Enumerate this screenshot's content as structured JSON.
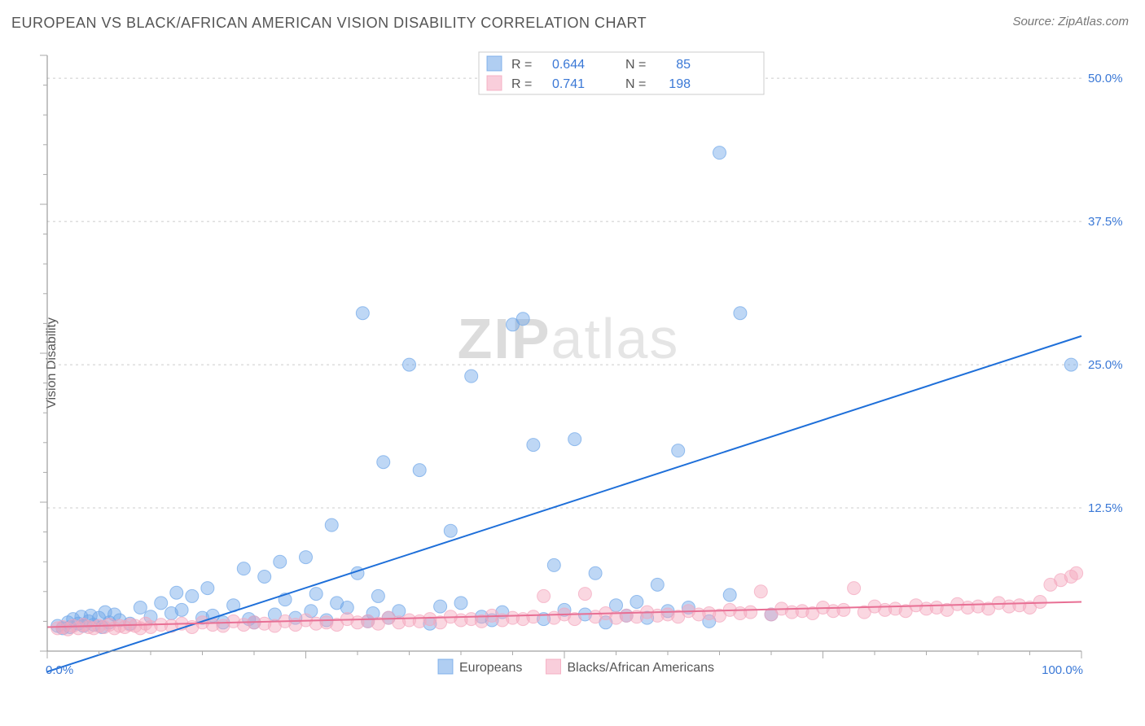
{
  "title": "EUROPEAN VS BLACK/AFRICAN AMERICAN VISION DISABILITY CORRELATION CHART",
  "source": "Source: ZipAtlas.com",
  "ylabel": "Vision Disability",
  "watermark_bold": "ZIP",
  "watermark_rest": "atlas",
  "chart": {
    "type": "scatter",
    "xlim": [
      0,
      100
    ],
    "ylim": [
      0,
      52
    ],
    "xticks": [
      0,
      100
    ],
    "xtick_labels": [
      "0.0%",
      "100.0%"
    ],
    "yticks": [
      12.5,
      25.0,
      37.5,
      50.0
    ],
    "ytick_labels": [
      "12.5%",
      "25.0%",
      "37.5%",
      "50.0%"
    ],
    "background_color": "#ffffff",
    "grid_color": "#cccccc",
    "axis_color": "#888888",
    "marker_radius": 8,
    "marker_opacity": 0.45,
    "marker_stroke_opacity": 0.7,
    "line_width": 2,
    "series": [
      {
        "name": "Europeans",
        "color": "#6fa6e8",
        "line_color": "#1e6fd9",
        "R": "0.644",
        "N": "85",
        "trend": {
          "x1": 0,
          "y1": -1.8,
          "x2": 100,
          "y2": 27.5
        },
        "points": [
          [
            1,
            2.2
          ],
          [
            1.5,
            2.0
          ],
          [
            2,
            2.5
          ],
          [
            2.2,
            2.1
          ],
          [
            2.5,
            2.8
          ],
          [
            3,
            2.4
          ],
          [
            3.3,
            3.0
          ],
          [
            3.5,
            2.2
          ],
          [
            4,
            2.6
          ],
          [
            4.2,
            3.1
          ],
          [
            4.5,
            2.3
          ],
          [
            5,
            2.9
          ],
          [
            5.3,
            2.1
          ],
          [
            5.6,
            3.4
          ],
          [
            6,
            2.5
          ],
          [
            6.5,
            3.2
          ],
          [
            7,
            2.7
          ],
          [
            8,
            2.4
          ],
          [
            9,
            3.8
          ],
          [
            10,
            3.0
          ],
          [
            11,
            4.2
          ],
          [
            12,
            3.3
          ],
          [
            12.5,
            5.1
          ],
          [
            13,
            3.6
          ],
          [
            14,
            4.8
          ],
          [
            15,
            2.9
          ],
          [
            15.5,
            5.5
          ],
          [
            16,
            3.1
          ],
          [
            17,
            2.5
          ],
          [
            18,
            4.0
          ],
          [
            19,
            7.2
          ],
          [
            19.5,
            2.8
          ],
          [
            20,
            2.5
          ],
          [
            21,
            6.5
          ],
          [
            22,
            3.2
          ],
          [
            22.5,
            7.8
          ],
          [
            23,
            4.5
          ],
          [
            24,
            2.9
          ],
          [
            25,
            8.2
          ],
          [
            25.5,
            3.5
          ],
          [
            26,
            5.0
          ],
          [
            27,
            2.7
          ],
          [
            27.5,
            11.0
          ],
          [
            28,
            4.2
          ],
          [
            29,
            3.8
          ],
          [
            30,
            6.8
          ],
          [
            30.5,
            29.5
          ],
          [
            31,
            2.6
          ],
          [
            31.5,
            3.3
          ],
          [
            32,
            4.8
          ],
          [
            32.5,
            16.5
          ],
          [
            33,
            2.9
          ],
          [
            34,
            3.5
          ],
          [
            35,
            25.0
          ],
          [
            36,
            15.8
          ],
          [
            37,
            2.4
          ],
          [
            38,
            3.9
          ],
          [
            39,
            10.5
          ],
          [
            40,
            4.2
          ],
          [
            41,
            24.0
          ],
          [
            42,
            3.0
          ],
          [
            43,
            2.7
          ],
          [
            44,
            3.4
          ],
          [
            45,
            28.5
          ],
          [
            46,
            29.0
          ],
          [
            47,
            18.0
          ],
          [
            48,
            2.8
          ],
          [
            49,
            7.5
          ],
          [
            50,
            3.6
          ],
          [
            51,
            18.5
          ],
          [
            52,
            3.2
          ],
          [
            53,
            6.8
          ],
          [
            54,
            2.5
          ],
          [
            55,
            4.0
          ],
          [
            56,
            3.1
          ],
          [
            57,
            4.3
          ],
          [
            58,
            2.9
          ],
          [
            59,
            5.8
          ],
          [
            60,
            3.5
          ],
          [
            61,
            17.5
          ],
          [
            62,
            3.8
          ],
          [
            64,
            2.6
          ],
          [
            65,
            43.5
          ],
          [
            66,
            4.9
          ],
          [
            67,
            29.5
          ],
          [
            70,
            3.2
          ],
          [
            99,
            25.0
          ]
        ]
      },
      {
        "name": "Blacks/African Americans",
        "color": "#f4a6bd",
        "line_color": "#e86f94",
        "R": "0.741",
        "N": "198",
        "trend": {
          "x1": 0,
          "y1": 2.1,
          "x2": 100,
          "y2": 4.3
        },
        "points": [
          [
            1,
            2.0
          ],
          [
            1.5,
            2.1
          ],
          [
            2,
            1.9
          ],
          [
            2.5,
            2.2
          ],
          [
            3,
            2.0
          ],
          [
            3.5,
            2.3
          ],
          [
            4,
            2.1
          ],
          [
            4.5,
            2.0
          ],
          [
            5,
            2.2
          ],
          [
            5.5,
            2.1
          ],
          [
            6,
            2.3
          ],
          [
            6.5,
            2.0
          ],
          [
            7,
            2.2
          ],
          [
            7.5,
            2.1
          ],
          [
            8,
            2.3
          ],
          [
            8.5,
            2.2
          ],
          [
            9,
            2.0
          ],
          [
            9.5,
            2.4
          ],
          [
            10,
            2.1
          ],
          [
            11,
            2.3
          ],
          [
            12,
            2.2
          ],
          [
            13,
            2.4
          ],
          [
            14,
            2.1
          ],
          [
            15,
            2.5
          ],
          [
            16,
            2.3
          ],
          [
            17,
            2.2
          ],
          [
            18,
            2.6
          ],
          [
            19,
            2.3
          ],
          [
            20,
            2.5
          ],
          [
            21,
            2.4
          ],
          [
            22,
            2.2
          ],
          [
            23,
            2.6
          ],
          [
            24,
            2.3
          ],
          [
            25,
            2.7
          ],
          [
            26,
            2.4
          ],
          [
            27,
            2.5
          ],
          [
            28,
            2.3
          ],
          [
            29,
            2.8
          ],
          [
            30,
            2.5
          ],
          [
            31,
            2.6
          ],
          [
            32,
            2.4
          ],
          [
            33,
            2.9
          ],
          [
            34,
            2.5
          ],
          [
            35,
            2.7
          ],
          [
            36,
            2.6
          ],
          [
            37,
            2.8
          ],
          [
            38,
            2.5
          ],
          [
            39,
            3.0
          ],
          [
            40,
            2.7
          ],
          [
            41,
            2.8
          ],
          [
            42,
            2.6
          ],
          [
            43,
            3.1
          ],
          [
            44,
            2.7
          ],
          [
            45,
            2.9
          ],
          [
            46,
            2.8
          ],
          [
            47,
            3.0
          ],
          [
            48,
            4.8
          ],
          [
            49,
            2.9
          ],
          [
            50,
            3.2
          ],
          [
            51,
            2.8
          ],
          [
            52,
            5.0
          ],
          [
            53,
            3.0
          ],
          [
            54,
            3.3
          ],
          [
            55,
            2.9
          ],
          [
            56,
            3.1
          ],
          [
            57,
            3.0
          ],
          [
            58,
            3.4
          ],
          [
            59,
            3.1
          ],
          [
            60,
            3.2
          ],
          [
            61,
            3.0
          ],
          [
            62,
            3.5
          ],
          [
            63,
            3.2
          ],
          [
            64,
            3.3
          ],
          [
            65,
            3.1
          ],
          [
            66,
            3.6
          ],
          [
            67,
            3.3
          ],
          [
            68,
            3.4
          ],
          [
            69,
            5.2
          ],
          [
            70,
            3.2
          ],
          [
            71,
            3.7
          ],
          [
            72,
            3.4
          ],
          [
            73,
            3.5
          ],
          [
            74,
            3.3
          ],
          [
            75,
            3.8
          ],
          [
            76,
            3.5
          ],
          [
            77,
            3.6
          ],
          [
            78,
            5.5
          ],
          [
            79,
            3.4
          ],
          [
            80,
            3.9
          ],
          [
            81,
            3.6
          ],
          [
            82,
            3.7
          ],
          [
            83,
            3.5
          ],
          [
            84,
            4.0
          ],
          [
            85,
            3.7
          ],
          [
            86,
            3.8
          ],
          [
            87,
            3.6
          ],
          [
            88,
            4.1
          ],
          [
            89,
            3.8
          ],
          [
            90,
            3.9
          ],
          [
            91,
            3.7
          ],
          [
            92,
            4.2
          ],
          [
            93,
            3.9
          ],
          [
            94,
            4.0
          ],
          [
            95,
            3.8
          ],
          [
            96,
            4.3
          ],
          [
            97,
            5.8
          ],
          [
            98,
            6.2
          ],
          [
            99,
            6.5
          ],
          [
            99.5,
            6.8
          ]
        ]
      }
    ],
    "legend_top": {
      "labels": [
        "R =",
        "N ="
      ]
    },
    "legend_bottom": {
      "items": [
        "Europeans",
        "Blacks/African Americans"
      ]
    }
  }
}
